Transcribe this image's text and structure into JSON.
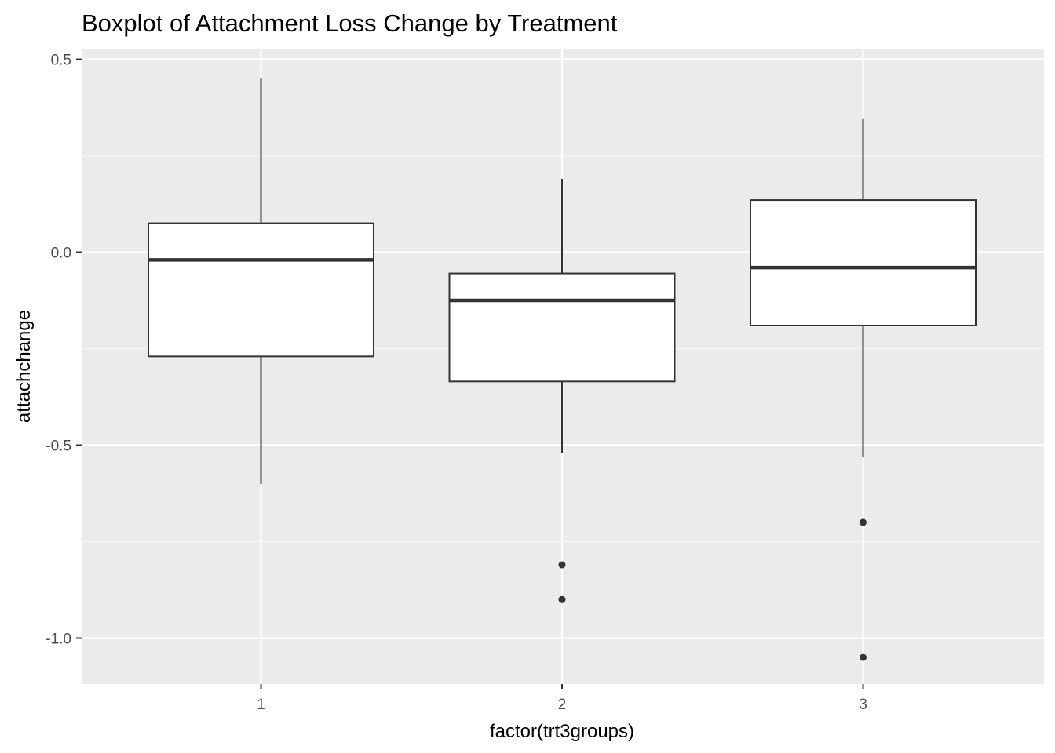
{
  "chart_data": {
    "type": "boxplot",
    "title": "Boxplot of Attachment Loss Change by Treatment",
    "xlabel": "factor(trt3groups)",
    "ylabel": "attachchange",
    "ylim": [
      -1.12,
      0.53
    ],
    "y_ticks": [
      -1.0,
      -0.5,
      0.0,
      0.5
    ],
    "y_tick_labels": [
      "-1.0",
      "-0.5",
      "0.0",
      "0.5"
    ],
    "categories": [
      "1",
      "2",
      "3"
    ],
    "grid": true,
    "boxes": [
      {
        "category": "1",
        "whisker_low": -0.6,
        "q1": -0.27,
        "median": -0.02,
        "q3": 0.075,
        "whisker_high": 0.45,
        "outliers": []
      },
      {
        "category": "2",
        "whisker_low": -0.52,
        "q1": -0.335,
        "median": -0.125,
        "q3": -0.055,
        "whisker_high": 0.19,
        "outliers": [
          -0.81,
          -0.9
        ]
      },
      {
        "category": "3",
        "whisker_low": -0.53,
        "q1": -0.19,
        "median": -0.04,
        "q3": 0.135,
        "whisker_high": 0.345,
        "outliers": [
          -0.7,
          -1.05
        ]
      }
    ],
    "colors": {
      "panel_background": "#ebebeb",
      "grid_major": "#ffffff",
      "grid_minor": "#f5f5f5",
      "box_fill": "#ffffff",
      "box_line": "#333333",
      "tick_text": "#4d4d4d"
    }
  }
}
